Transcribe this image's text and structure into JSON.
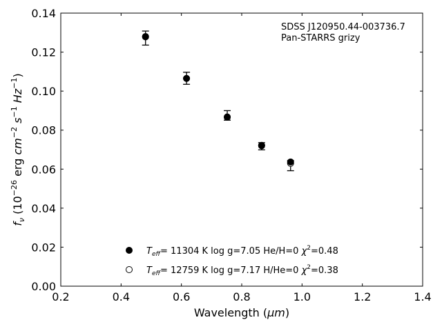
{
  "chart_data": {
    "type": "scatter",
    "xlabel": "Wavelength (",
    "xlabel_unit": "μm",
    "xlabel_tail": ")",
    "ylabel": {
      "f": "f",
      "nu": "ν",
      "open": " (10",
      "exp1": "−26",
      "erg": " erg ",
      "cm": "cm",
      "exp2": "−2",
      "s": " s",
      "exp3": "−1",
      "hz": " Hz",
      "exp4": "−1",
      "close": ")"
    },
    "xlim": [
      0.2,
      1.4
    ],
    "ylim": [
      0.0,
      0.14
    ],
    "xticks": [
      "0.2",
      "0.4",
      "0.6",
      "0.8",
      "1.0",
      "1.2",
      "1.4"
    ],
    "yticks": [
      "0.00",
      "0.02",
      "0.04",
      "0.06",
      "0.08",
      "0.10",
      "0.12",
      "0.14"
    ],
    "grid": false,
    "legend_position": "bottom-center",
    "annotation": [
      "SDSS J120950.44-003736.7",
      "Pan-STARRS grizy"
    ],
    "observed": [
      {
        "x": 0.481,
        "y": 0.1274,
        "yerr_low": 0.0038,
        "yerr_high": 0.0034
      },
      {
        "x": 0.617,
        "y": 0.1063,
        "yerr_low": 0.0028,
        "yerr_high": 0.0034
      },
      {
        "x": 0.752,
        "y": 0.0866,
        "yerr_low": 0.0015,
        "yerr_high": 0.0034
      },
      {
        "x": 0.866,
        "y": 0.0719,
        "yerr_low": 0.002,
        "yerr_high": 0.0017
      },
      {
        "x": 0.962,
        "y": 0.0635,
        "yerr_low": 0.0043,
        "yerr_high": 0.0009
      }
    ],
    "series": [
      {
        "marker": "filled",
        "t_label": "T",
        "t_sub": "eff",
        "label_text": "= 11304 K  log g=7.05  He/H=0  ",
        "chi": "χ",
        "chi_sup": "2",
        "chi_tail": "=0.48",
        "points": [
          {
            "x": 0.481,
            "y": 0.1278
          },
          {
            "x": 0.617,
            "y": 0.1065
          },
          {
            "x": 0.752,
            "y": 0.0868
          },
          {
            "x": 0.866,
            "y": 0.0722
          },
          {
            "x": 0.962,
            "y": 0.0637
          }
        ]
      },
      {
        "marker": "open",
        "t_label": "T",
        "t_sub": "eff",
        "label_text": "= 12759 K  log g=7.17  H/He=0  ",
        "chi": "χ",
        "chi_sup": "2",
        "chi_tail": "=0.38",
        "points": [
          {
            "x": 0.481,
            "y": 0.128
          },
          {
            "x": 0.617,
            "y": 0.1065
          },
          {
            "x": 0.752,
            "y": 0.0866
          },
          {
            "x": 0.866,
            "y": 0.072
          },
          {
            "x": 0.962,
            "y": 0.063
          }
        ]
      }
    ]
  }
}
